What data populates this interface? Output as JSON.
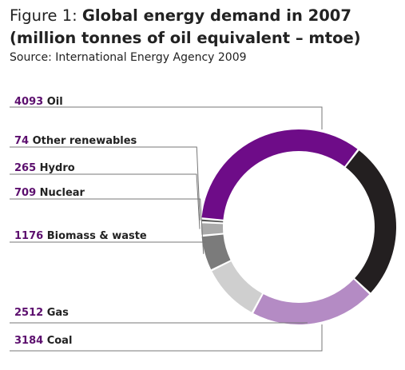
{
  "figure": {
    "label": "Figure 1:",
    "title": "Global energy demand in 2007 (million tonnes of oil equivalent – mtoe)",
    "source": "Source: International Energy Agency 2009"
  },
  "chart_data": {
    "type": "pie",
    "style": "donut",
    "title": "Global energy demand in 2007 (million tonnes of oil equivalent – mtoe)",
    "unit": "mtoe",
    "slices": [
      {
        "name": "Oil",
        "value": 4093,
        "color": "#6e0c88"
      },
      {
        "name": "Coal",
        "value": 3184,
        "color": "#231f20"
      },
      {
        "name": "Gas",
        "value": 2512,
        "color": "#b48bc4"
      },
      {
        "name": "Biomass & waste",
        "value": 1176,
        "color": "#cfcfcf"
      },
      {
        "name": "Nuclear",
        "value": 709,
        "color": "#7b7b7b"
      },
      {
        "name": "Hydro",
        "value": 265,
        "color": "#aaaaaa"
      },
      {
        "name": "Other renewables",
        "value": 74,
        "color": "#555555"
      }
    ]
  }
}
